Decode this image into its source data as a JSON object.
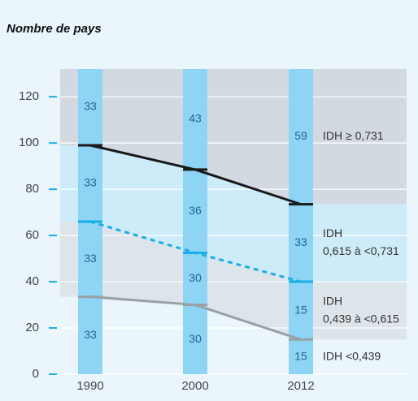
{
  "chart_data": {
    "type": "line",
    "title": "Nombre de pays",
    "categories": [
      "1990",
      "2000",
      "2012"
    ],
    "ylim": [
      0,
      132
    ],
    "yticks": [
      0,
      20,
      40,
      60,
      80,
      100,
      120
    ],
    "grid": true,
    "series": [
      {
        "color": "#9aa1a6",
        "values": [
          33.5,
          30,
          15
        ]
      },
      {
        "color": "#1aaee6",
        "style": "dashed",
        "values": [
          66,
          52.5,
          40
        ]
      },
      {
        "color": "#1a1a1a",
        "values": [
          99,
          88.5,
          73.5
        ]
      }
    ],
    "band_colors": [
      "#eaf6fc",
      "#dde4ea",
      "#cdebf8",
      "#d3d9e1"
    ],
    "column_color": "#8dd4f5",
    "counts": [
      [
        33,
        33,
        33,
        33
      ],
      [
        30,
        30,
        36,
        43
      ],
      [
        15,
        15,
        33,
        59
      ]
    ],
    "band_labels": [
      [
        "IDH <0,439"
      ],
      [
        "IDH",
        "0,439 à <0,615"
      ],
      [
        "IDH",
        "0,615 à  <0,731"
      ],
      [
        "IDH ≥ 0,731"
      ]
    ]
  }
}
